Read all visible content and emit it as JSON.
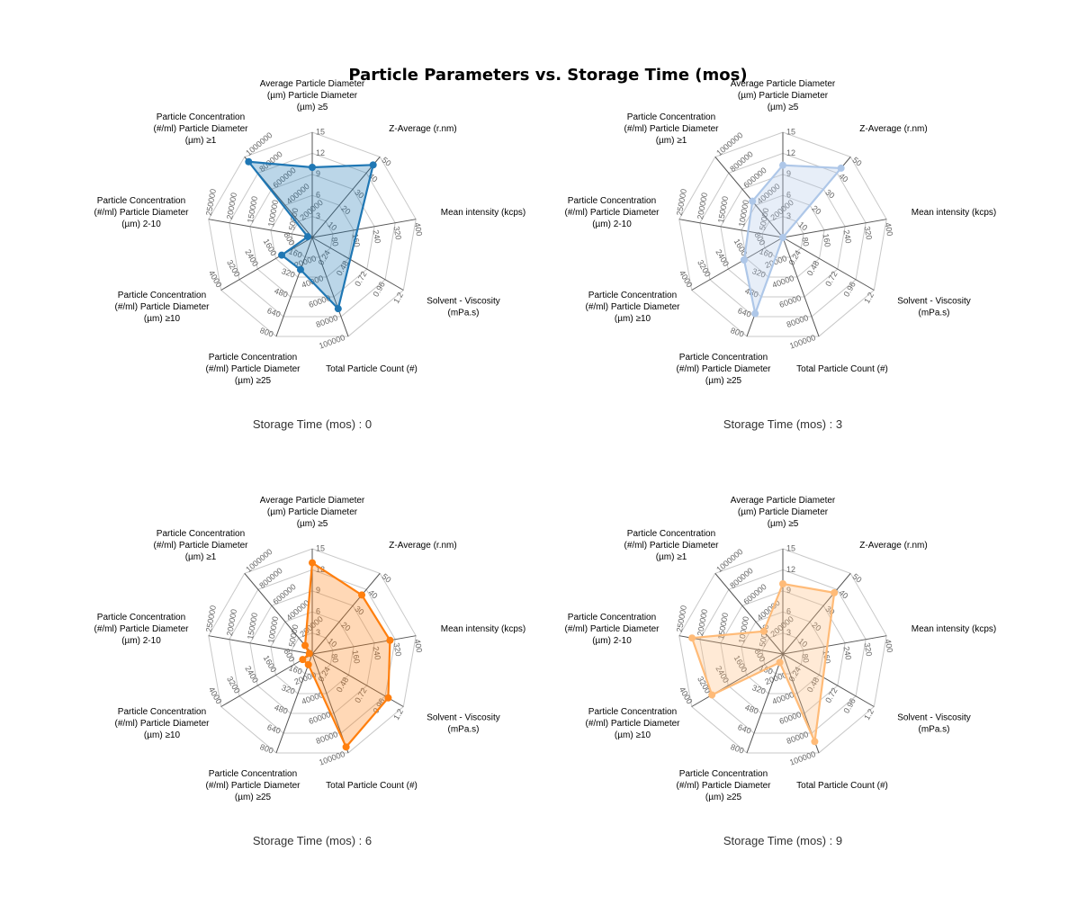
{
  "chart_data": {
    "type": "radar",
    "title": "Particle Parameters vs. Storage Time (mos)",
    "axes": [
      {
        "label": [
          "Average Particle Diameter",
          "(µm) Particle Diameter",
          "(µm) ≥5"
        ],
        "range": [
          0,
          15
        ],
        "ticks": [
          "3",
          "6",
          "9",
          "12",
          "15"
        ]
      },
      {
        "label": [
          "Z-Average (r.nm)"
        ],
        "range": [
          0,
          50
        ],
        "ticks": [
          "10",
          "20",
          "30",
          "40",
          "50"
        ]
      },
      {
        "label": [
          "Mean intensity (kcps)"
        ],
        "range": [
          0,
          400
        ],
        "ticks": [
          "80",
          "160",
          "240",
          "320",
          "400"
        ]
      },
      {
        "label": [
          "Solvent - Viscosity",
          "(mPa.s)"
        ],
        "range": [
          0,
          1.2
        ],
        "ticks": [
          "0.24",
          "0.48",
          "0.72",
          "0.96",
          "1.2"
        ]
      },
      {
        "label": [
          "Total Particle Count (#)"
        ],
        "range": [
          0,
          100000
        ],
        "ticks": [
          "20000",
          "40000",
          "60000",
          "80000",
          "100000"
        ]
      },
      {
        "label": [
          "Particle Concentration",
          "(#/ml) Particle Diameter",
          "(µm) ≥25"
        ],
        "range": [
          0,
          800
        ],
        "ticks": [
          "160",
          "320",
          "480",
          "640",
          "800"
        ]
      },
      {
        "label": [
          "Particle Concentration",
          "(#/ml) Particle Diameter",
          "(µm) ≥10"
        ],
        "range": [
          0,
          4000
        ],
        "ticks": [
          "800",
          "1600",
          "2400",
          "3200",
          "4000"
        ]
      },
      {
        "label": [
          "Particle Concentration",
          "(#/ml) Particle Diameter",
          "(µm) 2-10"
        ],
        "range": [
          0,
          250000
        ],
        "ticks": [
          "50000",
          "100000",
          "150000",
          "200000",
          "250000"
        ]
      },
      {
        "label": [
          "Particle Concentration",
          "(#/ml) Particle Diameter",
          "(µm) ≥1"
        ],
        "range": [
          0,
          1000000
        ],
        "ticks": [
          "200000",
          "400000",
          "600000",
          "800000",
          "1000000"
        ]
      }
    ],
    "series": [
      {
        "name": "Storage Time (mos) : 0",
        "color": "#1f77b4",
        "values": [
          10,
          45,
          null,
          null,
          72000,
          260,
          1340,
          11000,
          940000
        ]
      },
      {
        "name": "Storage Time (mos) : 3",
        "color": "#aec7e8",
        "values": [
          10.3,
          43,
          0,
          null,
          null,
          615,
          1700,
          null,
          450000
        ]
      },
      {
        "name": "Storage Time (mos) : 6",
        "color": "#ff7f0e",
        "values": [
          13,
          36.6,
          300,
          1.0,
          94000,
          86,
          420,
          7000,
          106000
        ]
      },
      {
        "name": "Storage Time (mos) : 9",
        "color": "#ffbb78",
        "values": [
          10,
          38,
          null,
          null,
          88500,
          68,
          3110,
          219000,
          282000
        ]
      }
    ],
    "grid": true,
    "legend": "none"
  }
}
